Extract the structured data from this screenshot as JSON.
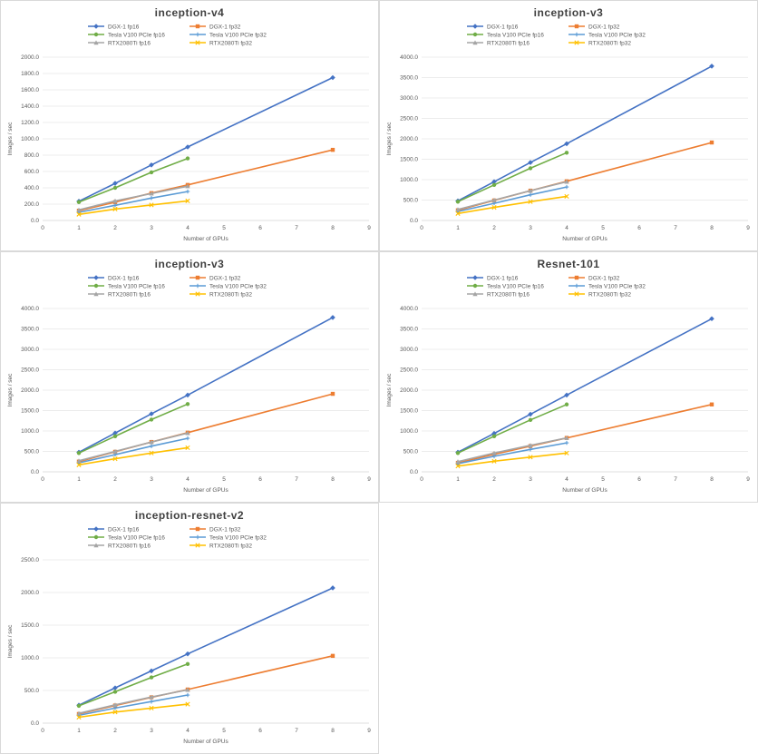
{
  "series_styles": [
    {
      "color": "#4472c4",
      "marker": "diamond"
    },
    {
      "color": "#ed7d31",
      "marker": "square"
    },
    {
      "color": "#70ad47",
      "marker": "circle"
    },
    {
      "color": "#5b9bd5",
      "marker": "cross"
    },
    {
      "color": "#a5a5a5",
      "marker": "triangle"
    },
    {
      "color": "#ffc000",
      "marker": "x"
    }
  ],
  "chart_data": [
    {
      "type": "line",
      "title": "inception-v4",
      "xlabel": "Number of GPUs",
      "ylabel": "Images / sec",
      "xlim": [
        0,
        9
      ],
      "ylim": [
        0,
        2000
      ],
      "xticks": [
        "0",
        "1",
        "2",
        "3",
        "4",
        "5",
        "6",
        "7",
        "8",
        "9"
      ],
      "yticks": [
        "0.0",
        "200.0",
        "400.0",
        "600.0",
        "800.0",
        "1000.0",
        "1200.0",
        "1400.0",
        "1600.0",
        "1800.0",
        "2000.0"
      ],
      "legend_position": "top",
      "grid": true,
      "series": [
        {
          "name": "DGX-1 fp16",
          "x": [
            1,
            2,
            3,
            4,
            8
          ],
          "values": [
            235,
            455,
            680,
            900,
            1750
          ]
        },
        {
          "name": "DGX-1 fp32",
          "x": [
            1,
            2,
            3,
            4,
            8
          ],
          "values": [
            120,
            225,
            335,
            435,
            865
          ]
        },
        {
          "name": "Tesla V100 PCIe fp16",
          "x": [
            1,
            2,
            3,
            4
          ],
          "values": [
            225,
            400,
            590,
            760
          ]
        },
        {
          "name": "Tesla V100 PCIe fp32",
          "x": [
            1,
            2,
            3,
            4
          ],
          "values": [
            100,
            185,
            275,
            355
          ]
        },
        {
          "name": "RTX2080Ti fp16",
          "x": [
            1,
            2,
            3,
            4
          ],
          "values": [
            130,
            240,
            330,
            420
          ]
        },
        {
          "name": "RTX2080Ti fp32",
          "x": [
            1,
            2,
            3,
            4
          ],
          "values": [
            75,
            140,
            190,
            240
          ]
        }
      ]
    },
    {
      "type": "line",
      "title": "inception-v3",
      "xlabel": "Number of GPUs",
      "ylabel": "Images / sec",
      "xlim": [
        0,
        9
      ],
      "ylim": [
        0,
        4000
      ],
      "xticks": [
        "0",
        "1",
        "2",
        "3",
        "4",
        "5",
        "6",
        "7",
        "8",
        "9"
      ],
      "yticks": [
        "0.0",
        "500.0",
        "1000.0",
        "1500.0",
        "2000.0",
        "2500.0",
        "3000.0",
        "3500.0",
        "4000.0"
      ],
      "legend_position": "top",
      "grid": true,
      "series": [
        {
          "name": "DGX-1 fp16",
          "x": [
            1,
            2,
            3,
            4,
            8
          ],
          "values": [
            480,
            950,
            1420,
            1880,
            3780
          ]
        },
        {
          "name": "DGX-1 fp32",
          "x": [
            1,
            2,
            3,
            4,
            8
          ],
          "values": [
            250,
            490,
            730,
            960,
            1910
          ]
        },
        {
          "name": "Tesla V100 PCIe fp16",
          "x": [
            1,
            2,
            3,
            4
          ],
          "values": [
            460,
            870,
            1280,
            1660
          ]
        },
        {
          "name": "Tesla V100 PCIe fp32",
          "x": [
            1,
            2,
            3,
            4
          ],
          "values": [
            220,
            420,
            630,
            820
          ]
        },
        {
          "name": "RTX2080Ti fp16",
          "x": [
            1,
            2,
            3,
            4
          ],
          "values": [
            270,
            500,
            730,
            950
          ]
        },
        {
          "name": "RTX2080Ti fp32",
          "x": [
            1,
            2,
            3,
            4
          ],
          "values": [
            170,
            320,
            460,
            590
          ]
        }
      ]
    },
    {
      "type": "line",
      "title": "inception-v3",
      "xlabel": "Number of GPUs",
      "ylabel": "Images / sec",
      "xlim": [
        0,
        9
      ],
      "ylim": [
        0,
        4000
      ],
      "xticks": [
        "0",
        "1",
        "2",
        "3",
        "4",
        "5",
        "6",
        "7",
        "8",
        "9"
      ],
      "yticks": [
        "0.0",
        "500.0",
        "1000.0",
        "1500.0",
        "2000.0",
        "2500.0",
        "3000.0",
        "3500.0",
        "4000.0"
      ],
      "legend_position": "top",
      "grid": true,
      "series": [
        {
          "name": "DGX-1 fp16",
          "x": [
            1,
            2,
            3,
            4,
            8
          ],
          "values": [
            480,
            950,
            1420,
            1880,
            3780
          ]
        },
        {
          "name": "DGX-1 fp32",
          "x": [
            1,
            2,
            3,
            4,
            8
          ],
          "values": [
            250,
            490,
            730,
            960,
            1910
          ]
        },
        {
          "name": "Tesla V100 PCIe fp16",
          "x": [
            1,
            2,
            3,
            4
          ],
          "values": [
            460,
            870,
            1280,
            1660
          ]
        },
        {
          "name": "Tesla V100 PCIe fp32",
          "x": [
            1,
            2,
            3,
            4
          ],
          "values": [
            220,
            420,
            630,
            820
          ]
        },
        {
          "name": "RTX2080Ti fp16",
          "x": [
            1,
            2,
            3,
            4
          ],
          "values": [
            270,
            500,
            730,
            950
          ]
        },
        {
          "name": "RTX2080Ti fp32",
          "x": [
            1,
            2,
            3,
            4
          ],
          "values": [
            170,
            320,
            460,
            590
          ]
        }
      ]
    },
    {
      "type": "line",
      "title": "Resnet-101",
      "xlabel": "Number of GPUs",
      "ylabel": "Images / sec",
      "xlim": [
        0,
        9
      ],
      "ylim": [
        0,
        4000
      ],
      "xticks": [
        "0",
        "1",
        "2",
        "3",
        "4",
        "5",
        "6",
        "7",
        "8",
        "9"
      ],
      "yticks": [
        "0.0",
        "500.0",
        "1000.0",
        "1500.0",
        "2000.0",
        "2500.0",
        "3000.0",
        "3500.0",
        "4000.0"
      ],
      "legend_position": "top",
      "grid": true,
      "series": [
        {
          "name": "DGX-1 fp16",
          "x": [
            1,
            2,
            3,
            4,
            8
          ],
          "values": [
            480,
            940,
            1410,
            1880,
            3750
          ]
        },
        {
          "name": "DGX-1 fp32",
          "x": [
            1,
            2,
            3,
            4,
            8
          ],
          "values": [
            220,
            430,
            630,
            830,
            1650
          ]
        },
        {
          "name": "Tesla V100 PCIe fp16",
          "x": [
            1,
            2,
            3,
            4
          ],
          "values": [
            460,
            870,
            1270,
            1650
          ]
        },
        {
          "name": "Tesla V100 PCIe fp32",
          "x": [
            1,
            2,
            3,
            4
          ],
          "values": [
            200,
            380,
            550,
            710
          ]
        },
        {
          "name": "RTX2080Ti fp16",
          "x": [
            1,
            2,
            3,
            4
          ],
          "values": [
            250,
            460,
            650,
            830
          ]
        },
        {
          "name": "RTX2080Ti fp32",
          "x": [
            1,
            2,
            3,
            4
          ],
          "values": [
            140,
            260,
            360,
            460
          ]
        }
      ]
    },
    {
      "type": "line",
      "title": "inception-resnet-v2",
      "xlabel": "Number of GPUs",
      "ylabel": "Images / sec",
      "xlim": [
        0,
        9
      ],
      "ylim": [
        0,
        2500
      ],
      "xticks": [
        "0",
        "1",
        "2",
        "3",
        "4",
        "5",
        "6",
        "7",
        "8",
        "9"
      ],
      "yticks": [
        "0.0",
        "500.0",
        "1000.0",
        "1500.0",
        "2000.0",
        "2500.0"
      ],
      "legend_position": "top",
      "grid": true,
      "series": [
        {
          "name": "DGX-1 fp16",
          "x": [
            1,
            2,
            3,
            4,
            8
          ],
          "values": [
            275,
            540,
            800,
            1060,
            2070
          ]
        },
        {
          "name": "DGX-1 fp32",
          "x": [
            1,
            2,
            3,
            4,
            8
          ],
          "values": [
            140,
            270,
            395,
            515,
            1030
          ]
        },
        {
          "name": "Tesla V100 PCIe fp16",
          "x": [
            1,
            2,
            3,
            4
          ],
          "values": [
            265,
            480,
            700,
            905
          ]
        },
        {
          "name": "Tesla V100 PCIe fp32",
          "x": [
            1,
            2,
            3,
            4
          ],
          "values": [
            120,
            230,
            330,
            430
          ]
        },
        {
          "name": "RTX2080Ti fp16",
          "x": [
            1,
            2,
            3,
            4
          ],
          "values": [
            150,
            280,
            400,
            510
          ]
        },
        {
          "name": "RTX2080Ti fp32",
          "x": [
            1,
            2,
            3,
            4
          ],
          "values": [
            90,
            170,
            230,
            290
          ]
        }
      ]
    }
  ]
}
